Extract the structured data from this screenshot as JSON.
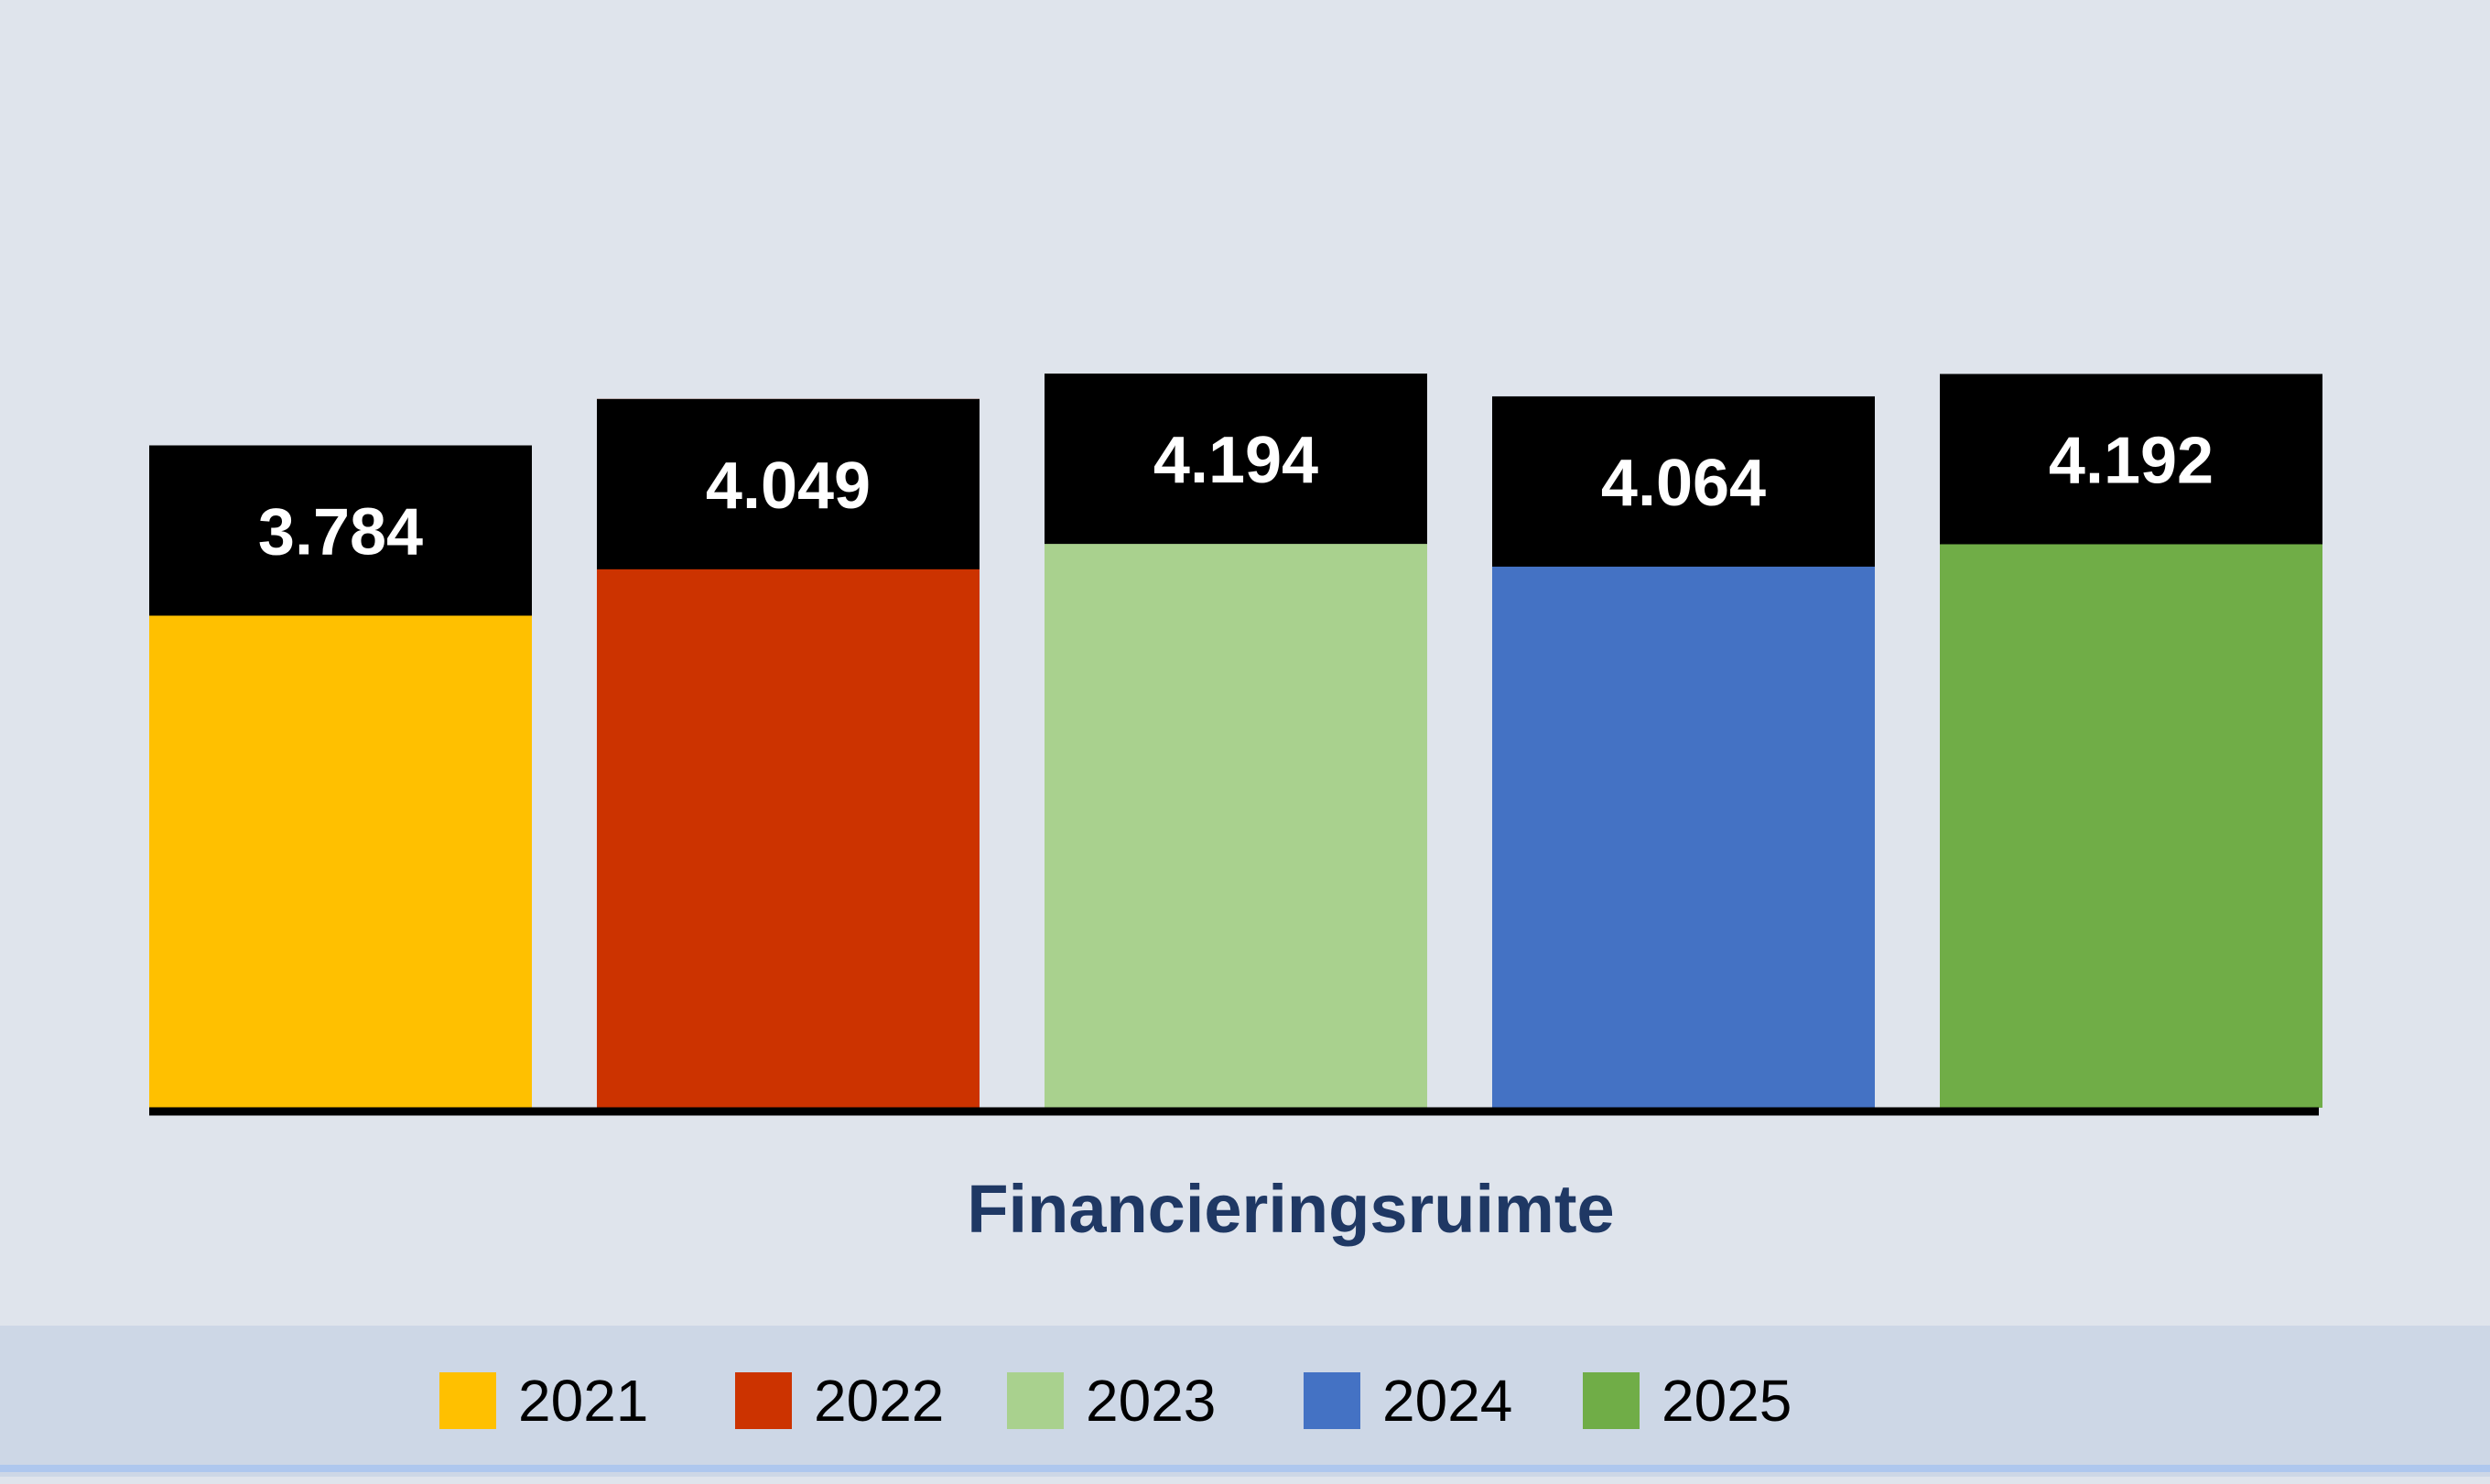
{
  "chart_data": {
    "type": "bar",
    "xlabel": "Financieringsruimte",
    "ylabel": "",
    "categories": [
      "2021",
      "2022",
      "2023",
      "2024",
      "2025"
    ],
    "values": [
      3784,
      4049,
      4194,
      4064,
      4192
    ],
    "value_labels": [
      "3.784",
      "4.049",
      "4.194",
      "4.064",
      "4.192"
    ],
    "colors": [
      "#ffc000",
      "#cc3300",
      "#a9d18e",
      "#4472c4",
      "#70ad47"
    ],
    "label_box_color": "#000000",
    "label_text_color": "#ffffff",
    "grid": false,
    "legend_position": "bottom"
  },
  "legend": {
    "items": [
      {
        "label": "2021",
        "color": "#ffc000"
      },
      {
        "label": "2022",
        "color": "#cc3300"
      },
      {
        "label": "2023",
        "color": "#a9d18e"
      },
      {
        "label": "2024",
        "color": "#4472c4"
      },
      {
        "label": "2025",
        "color": "#70ad47"
      }
    ]
  },
  "colors": {
    "background": "#dfe4ec",
    "legend_background": "#cdd7e6",
    "title": "#1f3864",
    "axis": "#000000"
  }
}
